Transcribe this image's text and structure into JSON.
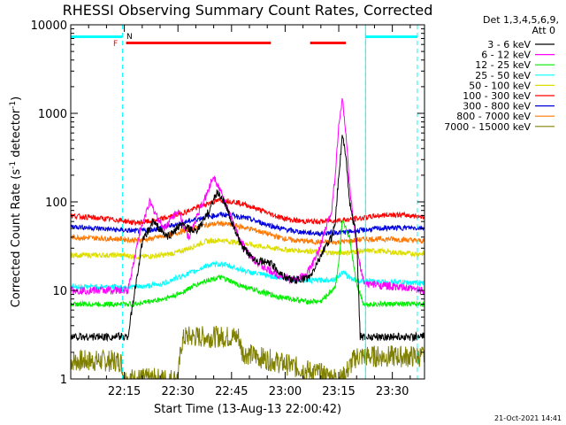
{
  "chart_data": {
    "type": "line",
    "title": "RHESSI Observing Summary Count Rates, Corrected",
    "xlabel": "Start Time (13-Aug-13 22:00:42)",
    "ylabel_main": "Corrected Count Rate (s",
    "ylabel_sup1": "-1",
    "ylabel_mid": " detector",
    "ylabel_sup2": "-1",
    "ylabel_end": ")",
    "yscale": "log",
    "ylim": [
      1,
      10000
    ],
    "xlim": [
      "22:00",
      "23:39"
    ],
    "x_ticks": [
      "22:15",
      "22:30",
      "22:45",
      "23:00",
      "23:15",
      "23:30"
    ],
    "x_tick_minutes": [
      15,
      30,
      45,
      60,
      75,
      90
    ],
    "y_ticks": [
      "1",
      "10",
      "100",
      "1000",
      "10000"
    ],
    "y_tick_values": [
      1,
      10,
      100,
      1000,
      10000
    ],
    "legend_header": [
      "Det 1,3,4,5,6,9,",
      "Att 0"
    ],
    "legend_placement": "right",
    "series": [
      {
        "name": "3 - 6 keV",
        "color": "#000000",
        "x": [
          0,
          14,
          16,
          20,
          23,
          27,
          31,
          35,
          38,
          41,
          43,
          45,
          48,
          52,
          56,
          60,
          63,
          67,
          70,
          73,
          74,
          75,
          76,
          77,
          78,
          80,
          81,
          99
        ],
        "y": [
          3,
          3,
          3,
          35,
          60,
          40,
          55,
          45,
          70,
          130,
          100,
          60,
          30,
          22,
          20,
          14,
          13,
          14,
          25,
          40,
          60,
          200,
          550,
          350,
          100,
          40,
          3,
          3
        ]
      },
      {
        "name": "6 - 12 keV",
        "color": "#ff00ff",
        "x": [
          0,
          14,
          16,
          19,
          22,
          26,
          30,
          33,
          36,
          38,
          40,
          42,
          44,
          47,
          50,
          54,
          58,
          62,
          66,
          69,
          71,
          73,
          74,
          75,
          76,
          77,
          78,
          80,
          82,
          99
        ],
        "y": [
          10,
          10,
          10,
          40,
          100,
          50,
          80,
          40,
          80,
          120,
          200,
          130,
          80,
          40,
          25,
          18,
          15,
          13,
          15,
          25,
          45,
          80,
          200,
          700,
          1500,
          600,
          150,
          30,
          12,
          10
        ]
      },
      {
        "name": "12 - 25 keV",
        "color": "#00ee00",
        "x": [
          0,
          14,
          18,
          22,
          26,
          30,
          34,
          38,
          42,
          46,
          50,
          54,
          58,
          62,
          66,
          70,
          72,
          74,
          75,
          76,
          78,
          80,
          82,
          90,
          99
        ],
        "y": [
          7,
          7,
          7,
          7.5,
          8,
          9,
          11,
          13,
          14,
          12,
          10.5,
          9.5,
          8.5,
          8,
          7.5,
          7.5,
          9,
          11,
          20,
          60,
          40,
          12,
          7,
          7,
          7
        ]
      },
      {
        "name": "25 - 50 keV",
        "color": "#00ffff",
        "x": [
          0,
          14,
          20,
          26,
          30,
          34,
          38,
          42,
          46,
          50,
          54,
          58,
          62,
          66,
          70,
          74,
          76,
          78,
          80,
          85,
          90,
          99
        ],
        "y": [
          11,
          11,
          11,
          12,
          14,
          16,
          19,
          20,
          18,
          16,
          15,
          14,
          13.5,
          13,
          13,
          13.5,
          16,
          14,
          13,
          12.5,
          12.5,
          12
        ]
      },
      {
        "name": "50 - 100 keV",
        "color": "#dddd00",
        "x": [
          0,
          14,
          20,
          26,
          30,
          34,
          38,
          42,
          46,
          50,
          54,
          58,
          62,
          66,
          70,
          74,
          78,
          82,
          86,
          90,
          95,
          99
        ],
        "y": [
          25,
          25,
          24,
          25,
          27,
          31,
          36,
          37,
          35,
          33,
          31,
          29.5,
          28.5,
          28,
          27,
          26.5,
          27,
          28,
          28,
          27,
          26,
          26
        ]
      },
      {
        "name": "100 - 300 keV",
        "color": "#ff0000",
        "x": [
          0,
          14,
          18,
          22,
          26,
          30,
          34,
          38,
          42,
          46,
          50,
          54,
          58,
          62,
          66,
          70,
          74,
          78,
          82,
          86,
          90,
          95,
          99
        ],
        "y": [
          70,
          62,
          58,
          60,
          65,
          72,
          82,
          95,
          105,
          100,
          90,
          78,
          68,
          62,
          60,
          60,
          62,
          63,
          66,
          70,
          72,
          70,
          68
        ]
      },
      {
        "name": "300 - 800 keV",
        "color": "#0000dd",
        "x": [
          0,
          14,
          18,
          22,
          26,
          30,
          34,
          38,
          42,
          46,
          50,
          54,
          58,
          62,
          66,
          70,
          74,
          78,
          82,
          86,
          90,
          95,
          99
        ],
        "y": [
          53,
          48,
          47,
          48,
          52,
          56,
          62,
          68,
          72,
          70,
          64,
          57,
          51,
          47,
          45,
          44,
          45,
          46,
          48,
          50,
          51,
          51,
          51
        ]
      },
      {
        "name": "800 - 7000 keV",
        "color": "#ff7700",
        "x": [
          0,
          14,
          18,
          22,
          26,
          30,
          34,
          38,
          42,
          46,
          50,
          54,
          58,
          62,
          66,
          70,
          74,
          78,
          82,
          86,
          90,
          95,
          99
        ],
        "y": [
          40,
          38,
          37,
          38,
          41,
          45,
          50,
          55,
          57,
          54,
          50,
          45,
          40,
          37,
          36,
          35,
          35,
          36,
          38,
          38,
          38,
          37,
          36
        ]
      },
      {
        "name": "7000 - 15000 keV",
        "color": "#808000",
        "x": [
          0,
          14,
          15,
          30,
          31,
          32,
          47,
          48,
          75,
          76,
          79,
          80,
          99
        ],
        "y": [
          1.6,
          1.6,
          1,
          1,
          2.5,
          3,
          3,
          2,
          1,
          1,
          1.6,
          1.8,
          1.8
        ]
      }
    ],
    "annotations": {
      "n_label": "N",
      "f_label": "F",
      "night_bars_minutes": [
        [
          0,
          14.5
        ],
        [
          82.5,
          97
        ]
      ],
      "flare_bars_minutes": [
        [
          15.5,
          56
        ],
        [
          67,
          77
        ]
      ],
      "night_boundaries_minutes": [
        14.5,
        82.5,
        97
      ]
    },
    "date_stamp": "21-Oct-2021 14:41"
  }
}
